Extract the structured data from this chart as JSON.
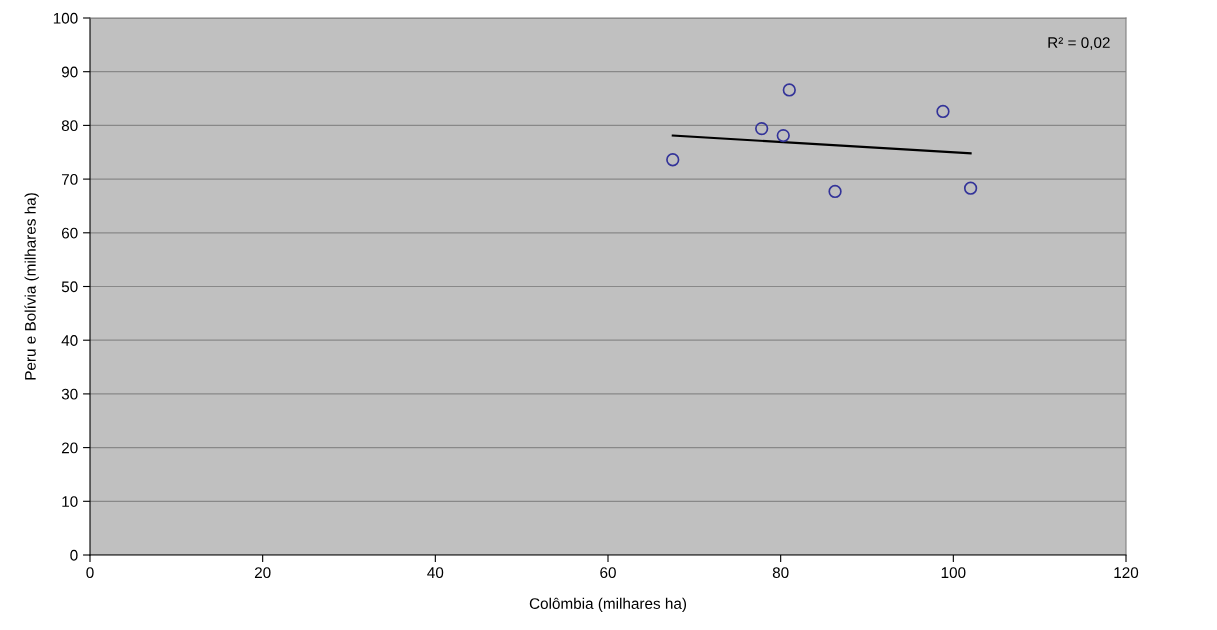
{
  "chart_data": {
    "type": "scatter",
    "xlabel": "Colômbia (milhares ha)",
    "ylabel": "Peru e Bolívia (milhares ha)",
    "xlim": [
      0,
      120
    ],
    "xticks": [
      0,
      20,
      40,
      60,
      80,
      100,
      120
    ],
    "ylim": [
      0,
      100
    ],
    "yticks": [
      0,
      10,
      20,
      30,
      40,
      50,
      60,
      70,
      80,
      90,
      100
    ],
    "grid": "y",
    "marker": "circle",
    "series": [
      {
        "color": "#333399",
        "x": [
          67.5,
          77.8,
          80.3,
          81.0,
          86.3,
          98.8,
          102.0
        ],
        "values": [
          73.6,
          79.4,
          78.1,
          86.6,
          67.7,
          82.6,
          68.3
        ]
      },
      {
        "type": "line",
        "color": "#000000",
        "marker": "none",
        "x": [
          67.5,
          102.0
        ],
        "values": [
          78.1,
          74.8
        ]
      }
    ],
    "annotations": [
      "R² = 0,02"
    ]
  }
}
